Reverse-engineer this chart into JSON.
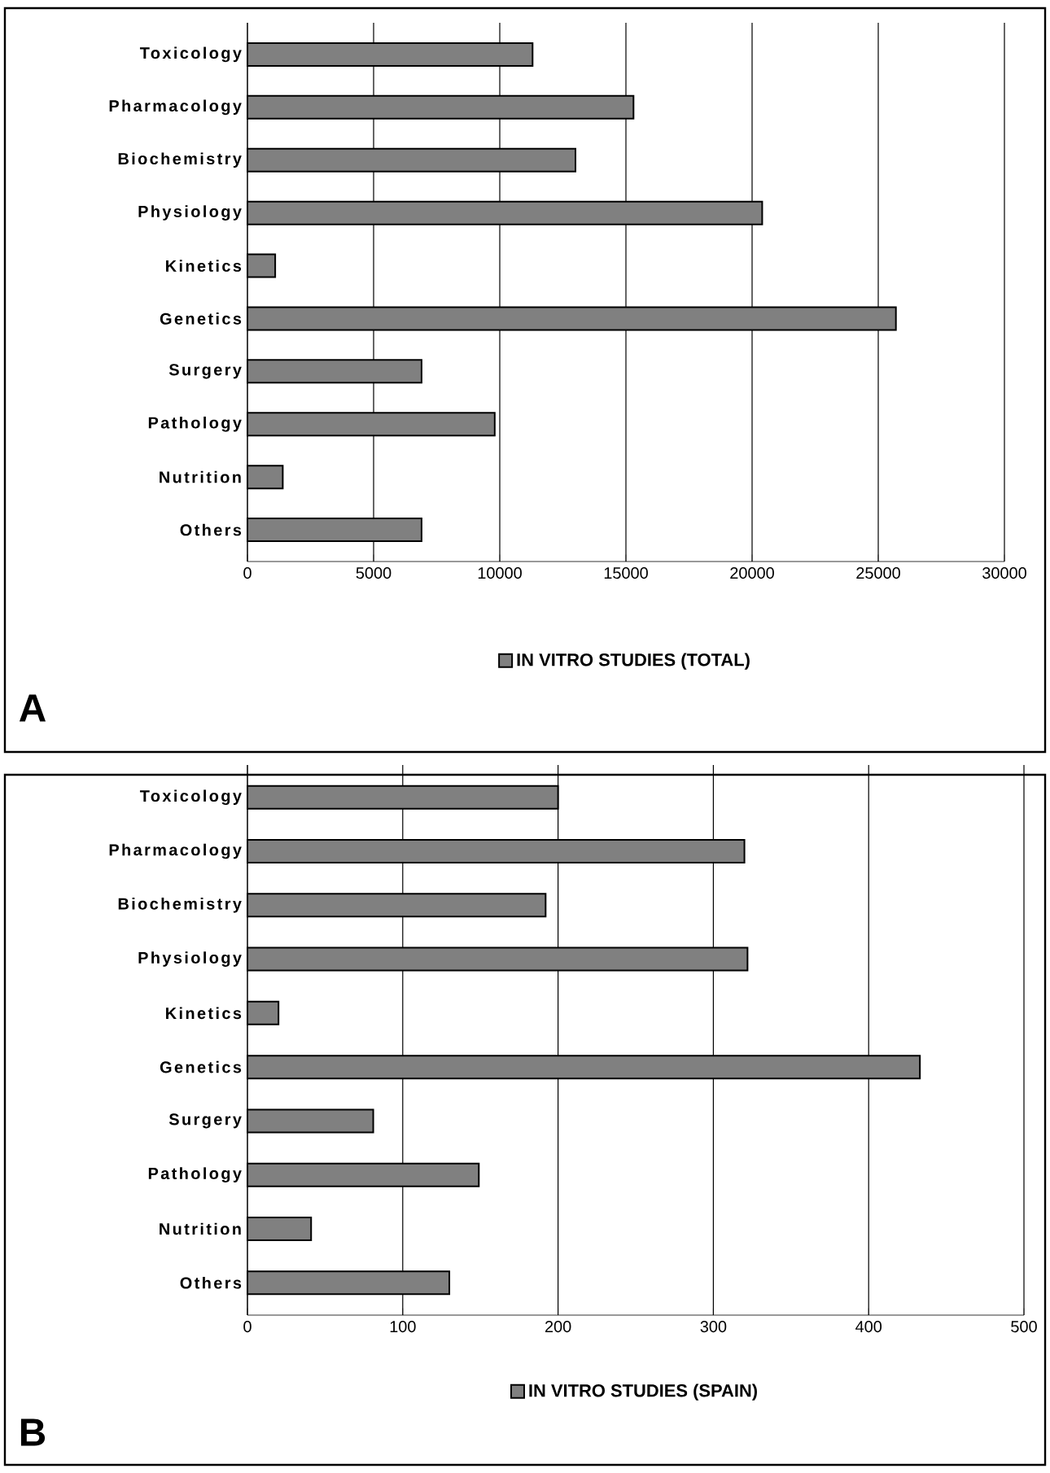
{
  "chart_data": [
    {
      "type": "bar",
      "orientation": "horizontal",
      "categories": [
        "Toxicology",
        "Pharmacology",
        "Biochemistry",
        "Physiology",
        "Kinetics",
        "Genetics",
        "Surgery",
        "Pathology",
        "Nutrition",
        "Others"
      ],
      "series": [
        {
          "name": "IN VITRO STUDIES (TOTAL)",
          "color": "#808080",
          "values": [
            11300,
            15300,
            13000,
            20400,
            1100,
            25700,
            6900,
            9800,
            1400,
            6900
          ]
        }
      ],
      "xlim": [
        0,
        30000
      ],
      "xticks": [
        0,
        5000,
        10000,
        15000,
        20000,
        25000,
        30000
      ],
      "grid": "x",
      "legend": "bottom",
      "annotations": [
        "A"
      ]
    },
    {
      "type": "bar",
      "orientation": "horizontal",
      "categories": [
        "Toxicology",
        "Pharmacology",
        "Biochemistry",
        "Physiology",
        "Kinetics",
        "Genetics",
        "Surgery",
        "Pathology",
        "Nutrition",
        "Others"
      ],
      "series": [
        {
          "name": "IN VITRO STUDIES (SPAIN)",
          "color": "#808080",
          "values": [
            200,
            320,
            192,
            322,
            20,
            433,
            81,
            149,
            41,
            130
          ]
        }
      ],
      "xlim": [
        0,
        500
      ],
      "xticks": [
        0,
        100,
        200,
        300,
        400,
        500
      ],
      "grid": "x",
      "legend": "bottom",
      "annotations": [
        "B"
      ]
    }
  ]
}
